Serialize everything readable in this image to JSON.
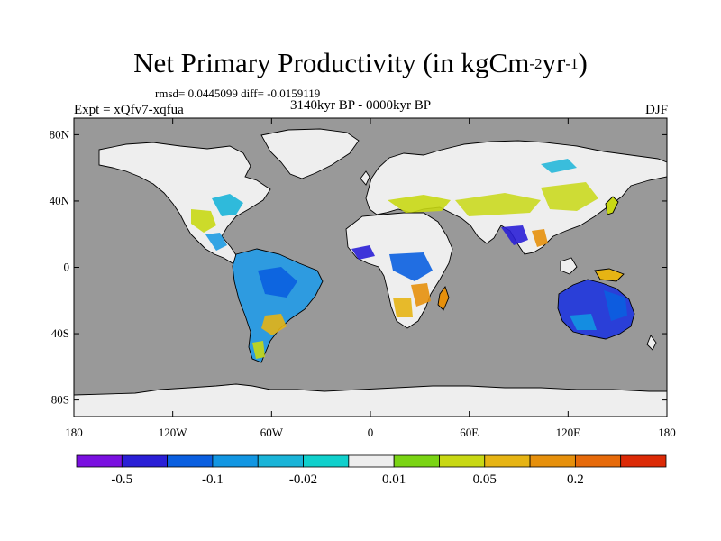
{
  "title": {
    "prefix": "Net Primary Productivity (in kgCm",
    "exp1": "-2",
    "middle": "yr",
    "exp2": "-1",
    "suffix": ")"
  },
  "stats": "rmsd= 0.0445099 diff= -0.0159119",
  "left_label": "Expt = xQfv7-xqfua",
  "center_label": "3140kyr BP - 0000kyr BP",
  "right_label": "DJF",
  "colors": {
    "ocean": "#999999",
    "land_neutral": "#eeeeee",
    "frame": "#000000"
  },
  "axes": {
    "lat_ticks": [
      {
        "value": 80,
        "label": "80N"
      },
      {
        "value": 40,
        "label": "40N"
      },
      {
        "value": 0,
        "label": "0"
      },
      {
        "value": -40,
        "label": "40S"
      },
      {
        "value": -80,
        "label": "80S"
      }
    ],
    "lon_ticks": [
      {
        "value": -180,
        "label": "180"
      },
      {
        "value": -120,
        "label": "120W"
      },
      {
        "value": -60,
        "label": "60W"
      },
      {
        "value": 0,
        "label": "0"
      },
      {
        "value": 60,
        "label": "60E"
      },
      {
        "value": 120,
        "label": "120E"
      },
      {
        "value": 180,
        "label": "180"
      }
    ]
  },
  "colorbar": {
    "colors": [
      "#7a10e0",
      "#2a1fd6",
      "#0a5fe0",
      "#1296e2",
      "#1ab4d8",
      "#10d0cc",
      "#eeeeee",
      "#7ad414",
      "#c8d814",
      "#e6b414",
      "#e6900c",
      "#e66a0a",
      "#dc2a06"
    ],
    "labels": [
      {
        "after_box": 1,
        "text": "-0.5"
      },
      {
        "after_box": 3,
        "text": "-0.1"
      },
      {
        "after_box": 5,
        "text": "-0.02"
      },
      {
        "after_box": 7,
        "text": "0.01"
      },
      {
        "after_box": 9,
        "text": "0.05"
      },
      {
        "after_box": 11,
        "text": "0.2"
      }
    ]
  }
}
